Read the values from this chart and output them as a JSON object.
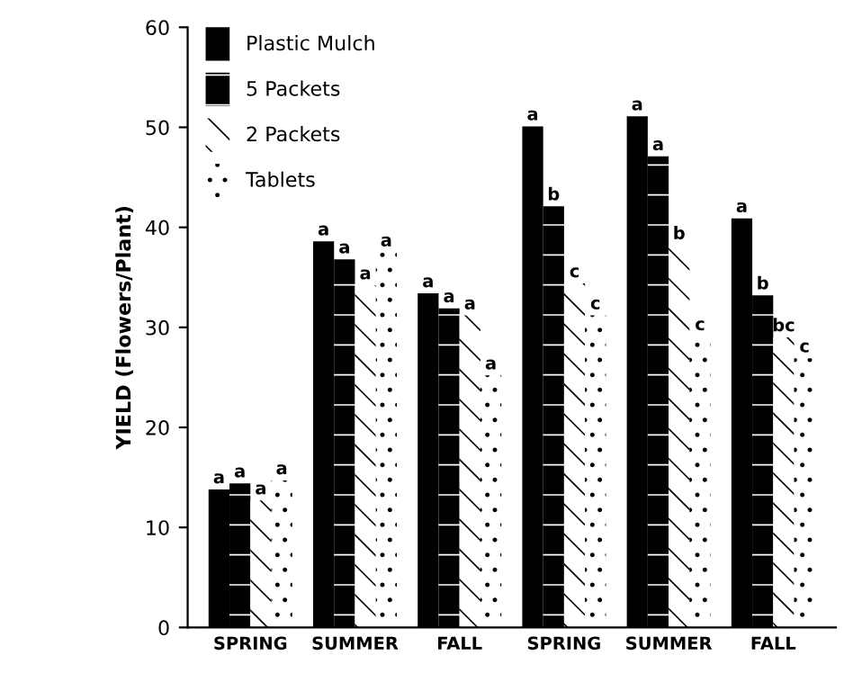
{
  "chart_data": {
    "type": "bar",
    "ylabel": "YIELD (Flowers/Plant)",
    "categories": [
      "SPRING",
      "SUMMER",
      "FALL",
      "SPRING",
      "SUMMER",
      "FALL"
    ],
    "series": [
      {
        "name": "Plastic Mulch",
        "color": "#000000",
        "values": [
          13.8,
          38.6,
          33.4,
          50.1,
          51.1,
          40.9
        ],
        "value_labels": [
          "a",
          "a",
          "a",
          "a",
          "a",
          "a"
        ]
      },
      {
        "name": "5 Packets",
        "color": "#000000",
        "values": [
          14.4,
          36.8,
          31.9,
          42.1,
          47.1,
          33.2
        ],
        "value_labels": [
          "a",
          "a",
          "a",
          "b",
          "a",
          "b"
        ]
      },
      {
        "name": "2 Packets",
        "color": "#ffffff",
        "values": [
          12.7,
          34.2,
          31.2,
          34.4,
          38.2,
          29.0
        ],
        "value_labels": [
          "a",
          "a",
          "a",
          "c",
          "b",
          "bc"
        ]
      },
      {
        "name": "Tablets",
        "color": "#ffffff",
        "values": [
          14.7,
          37.5,
          25.2,
          31.2,
          29.1,
          26.9
        ],
        "value_labels": [
          "a",
          "a",
          "a",
          "c",
          "c",
          "c"
        ]
      }
    ],
    "ylim": [
      0,
      60
    ],
    "yticks": [
      0,
      10,
      20,
      30,
      40,
      50,
      60
    ],
    "grid": false,
    "legend": "top left"
  }
}
